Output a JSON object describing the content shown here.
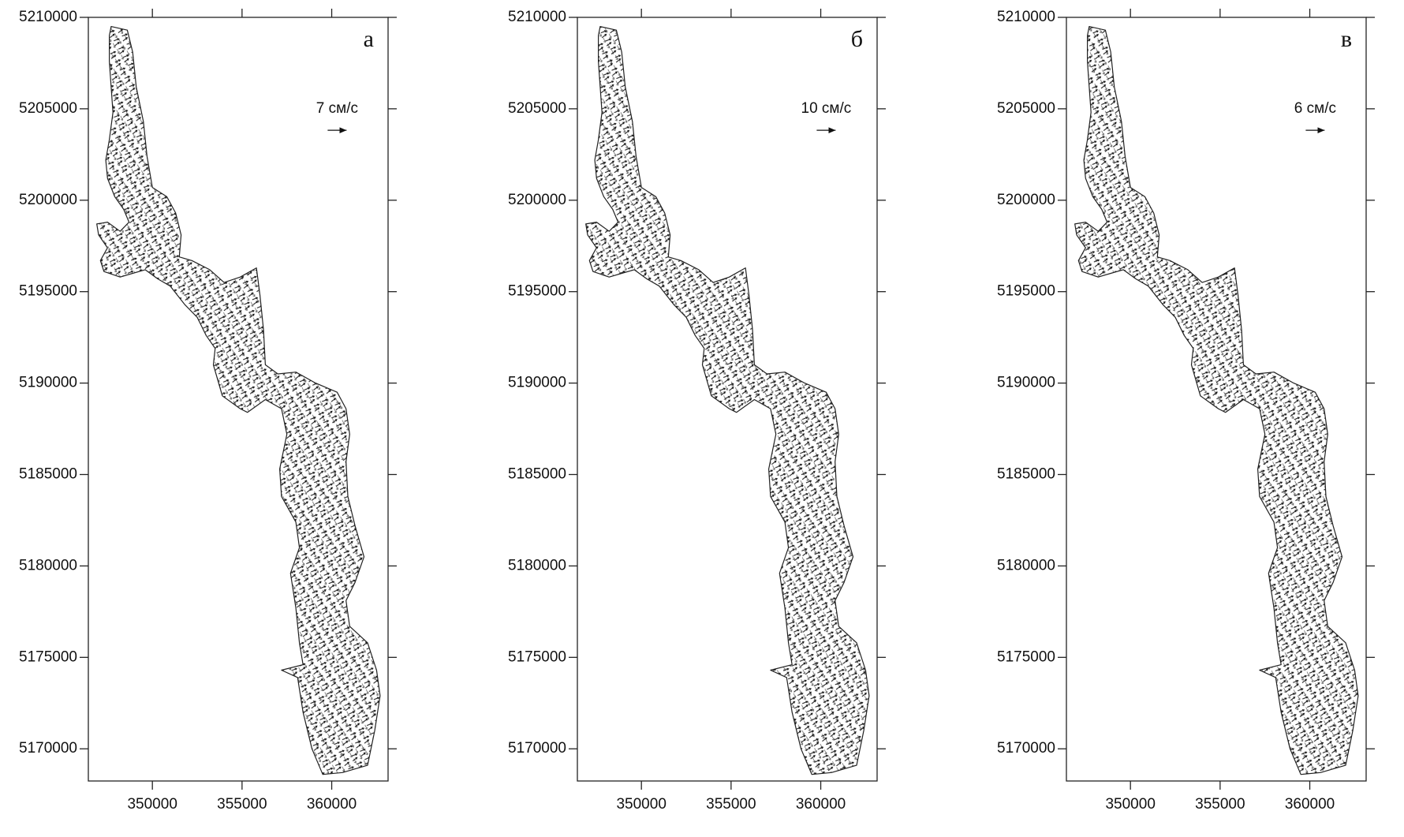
{
  "chart_data": [
    {
      "type": "vector_field",
      "panel_label": "а",
      "scale_label": "7 см/с",
      "xlim": [
        346429,
        363143
      ],
      "ylim": [
        5168240,
        5210000
      ],
      "xticks": [
        350000,
        355000,
        360000
      ],
      "yticks": [
        5170000,
        5175000,
        5180000,
        5185000,
        5190000,
        5195000,
        5200000,
        5205000,
        5210000
      ],
      "shoreline": {
        "x": [
          347700,
          348600,
          348900,
          349100,
          349500,
          349700,
          350000,
          350800,
          351300,
          351600,
          351500,
          352200,
          353200,
          354000,
          354900,
          355800,
          356000,
          356200,
          356300,
          357000,
          358000,
          359100,
          360300,
          360800,
          361000,
          360800,
          360900,
          361300,
          361800,
          361300,
          360800,
          361000,
          362000,
          362500,
          362700,
          362400,
          362000,
          360600,
          359500,
          358900,
          358400,
          358100,
          357200,
          358400,
          358200,
          358000,
          357700,
          358200,
          358000,
          357200,
          357100,
          357500,
          357200,
          356300,
          355300,
          354900,
          353900,
          353400,
          353500,
          353000,
          352500,
          351800,
          351000,
          350300,
          349600,
          348900,
          348200,
          347300,
          347100,
          347500,
          347000,
          346900,
          347500,
          348200,
          348700,
          348400,
          347900,
          347500,
          347400,
          347600,
          347800,
          347700,
          347600,
          347600
        ],
        "y": [
          5209500,
          5209300,
          5208100,
          5206200,
          5204300,
          5202400,
          5200700,
          5200200,
          5199300,
          5198100,
          5196900,
          5196700,
          5196200,
          5195500,
          5195800,
          5196300,
          5194800,
          5192900,
          5191000,
          5190500,
          5190600,
          5190000,
          5189500,
          5188600,
          5187200,
          5185700,
          5183800,
          5182200,
          5180500,
          5179100,
          5178100,
          5176700,
          5175800,
          5174300,
          5172900,
          5171000,
          5169100,
          5168700,
          5168600,
          5170000,
          5172000,
          5173900,
          5174300,
          5174600,
          5175800,
          5177700,
          5179600,
          5181000,
          5182400,
          5183800,
          5185300,
          5187200,
          5188600,
          5189100,
          5188400,
          5188600,
          5189300,
          5191000,
          5191900,
          5192600,
          5193600,
          5194300,
          5195300,
          5195700,
          5196200,
          5196000,
          5195800,
          5196100,
          5196700,
          5197400,
          5198100,
          5198700,
          5198800,
          5198300,
          5198800,
          5199500,
          5200200,
          5201200,
          5202200,
          5203300,
          5204800,
          5206200,
          5207600,
          5209000
        ]
      }
    },
    {
      "type": "vector_field",
      "panel_label": "б",
      "scale_label": "10 см/с",
      "xlim": [
        346429,
        363143
      ],
      "ylim": [
        5168240,
        5210000
      ],
      "xticks": [
        350000,
        355000,
        360000
      ],
      "yticks": [
        5170000,
        5175000,
        5180000,
        5185000,
        5190000,
        5195000,
        5200000,
        5205000,
        5210000
      ],
      "shoreline": {
        "x": [
          347700,
          348600,
          348900,
          349100,
          349500,
          349700,
          350000,
          350800,
          351300,
          351600,
          351500,
          352200,
          353200,
          354000,
          354900,
          355800,
          356000,
          356200,
          356300,
          357000,
          358000,
          359100,
          360300,
          360800,
          361000,
          360800,
          360900,
          361300,
          361800,
          361300,
          360800,
          361000,
          362000,
          362500,
          362700,
          362400,
          362000,
          360600,
          359500,
          358900,
          358400,
          358100,
          357200,
          358400,
          358200,
          358000,
          357700,
          358200,
          358000,
          357200,
          357100,
          357500,
          357200,
          356300,
          355300,
          354900,
          353900,
          353400,
          353500,
          353000,
          352500,
          351800,
          351000,
          350300,
          349600,
          348900,
          348200,
          347300,
          347100,
          347500,
          347000,
          346900,
          347500,
          348200,
          348700,
          348400,
          347900,
          347500,
          347400,
          347600,
          347800,
          347700,
          347600,
          347600
        ],
        "y": [
          5209500,
          5209300,
          5208100,
          5206200,
          5204300,
          5202400,
          5200700,
          5200200,
          5199300,
          5198100,
          5196900,
          5196700,
          5196200,
          5195500,
          5195800,
          5196300,
          5194800,
          5192900,
          5191000,
          5190500,
          5190600,
          5190000,
          5189500,
          5188600,
          5187200,
          5185700,
          5183800,
          5182200,
          5180500,
          5179100,
          5178100,
          5176700,
          5175800,
          5174300,
          5172900,
          5171000,
          5169100,
          5168700,
          5168600,
          5170000,
          5172000,
          5173900,
          5174300,
          5174600,
          5175800,
          5177700,
          5179600,
          5181000,
          5182400,
          5183800,
          5185300,
          5187200,
          5188600,
          5189100,
          5188400,
          5188600,
          5189300,
          5191000,
          5191900,
          5192600,
          5193600,
          5194300,
          5195300,
          5195700,
          5196200,
          5196000,
          5195800,
          5196100,
          5196700,
          5197400,
          5198100,
          5198700,
          5198800,
          5198300,
          5198800,
          5199500,
          5200200,
          5201200,
          5202200,
          5203300,
          5204800,
          5206200,
          5207600,
          5209000
        ]
      }
    },
    {
      "type": "vector_field",
      "panel_label": "в",
      "scale_label": "6 см/с",
      "xlim": [
        346429,
        363143
      ],
      "ylim": [
        5168240,
        5210000
      ],
      "xticks": [
        350000,
        355000,
        360000
      ],
      "yticks": [
        5170000,
        5175000,
        5180000,
        5185000,
        5190000,
        5195000,
        5200000,
        5205000,
        5210000
      ],
      "shoreline": {
        "x": [
          347700,
          348600,
          348900,
          349100,
          349500,
          349700,
          350000,
          350800,
          351300,
          351600,
          351500,
          352200,
          353200,
          354000,
          354900,
          355800,
          356000,
          356200,
          356300,
          357000,
          358000,
          359100,
          360300,
          360800,
          361000,
          360800,
          360900,
          361300,
          361800,
          361300,
          360800,
          361000,
          362000,
          362500,
          362700,
          362400,
          362000,
          360600,
          359500,
          358900,
          358400,
          358100,
          357200,
          358400,
          358200,
          358000,
          357700,
          358200,
          358000,
          357200,
          357100,
          357500,
          357200,
          356300,
          355300,
          354900,
          353900,
          353400,
          353500,
          353000,
          352500,
          351800,
          351000,
          350300,
          349600,
          348900,
          348200,
          347300,
          347100,
          347500,
          347000,
          346900,
          347500,
          348200,
          348700,
          348400,
          347900,
          347500,
          347400,
          347600,
          347800,
          347700,
          347600,
          347600
        ],
        "y": [
          5209500,
          5209300,
          5208100,
          5206200,
          5204300,
          5202400,
          5200700,
          5200200,
          5199300,
          5198100,
          5196900,
          5196700,
          5196200,
          5195500,
          5195800,
          5196300,
          5194800,
          5192900,
          5191000,
          5190500,
          5190600,
          5190000,
          5189500,
          5188600,
          5187200,
          5185700,
          5183800,
          5182200,
          5180500,
          5179100,
          5178100,
          5176700,
          5175800,
          5174300,
          5172900,
          5171000,
          5169100,
          5168700,
          5168600,
          5170000,
          5172000,
          5173900,
          5174300,
          5174600,
          5175800,
          5177700,
          5179600,
          5181000,
          5182400,
          5183800,
          5185300,
          5187200,
          5188600,
          5189100,
          5188400,
          5188600,
          5189300,
          5191000,
          5191900,
          5192600,
          5193600,
          5194300,
          5195300,
          5195700,
          5196200,
          5196000,
          5195800,
          5196100,
          5196700,
          5197400,
          5198100,
          5198700,
          5198800,
          5198300,
          5198800,
          5199500,
          5200200,
          5201200,
          5202200,
          5203300,
          5204800,
          5206200,
          5207600,
          5209000
        ]
      }
    }
  ]
}
